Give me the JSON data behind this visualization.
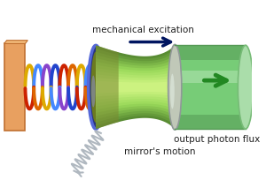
{
  "bg_color": "#ffffff",
  "wall_color": "#e8a060",
  "wall_edge_color": "#c07030",
  "spring_colors": [
    "#cc2200",
    "#dd6600",
    "#ddaa00",
    "#4488ff",
    "#8844cc",
    "#2244cc"
  ],
  "mirror_left_color_grad": [
    "#4455bb",
    "#6070d0",
    "#8090e0"
  ],
  "mirror_left_dark": "#2a3580",
  "mirror_left_mid": "#6a7ae0",
  "mirror_left_highlight": "#9090e8",
  "cavity_color1": "#c8e090",
  "cavity_color2": "#88bb60",
  "cavity_color3": "#557730",
  "cylinder_top": "#aade99",
  "cylinder_mid": "#77cc77",
  "cylinder_dark": "#559955",
  "mirror_right_color": "#c0c8b8",
  "mirror_right_dark": "#808c80",
  "mirror_right_edge": "#909898",
  "arrow_mech_color": "#001560",
  "arrow_out_color": "#228822",
  "wave_color": "#b0b8c0",
  "text_mech": "mechanical excitation",
  "text_mirror": "mirror's motion",
  "text_output": "output photon flux",
  "text_color": "#202020",
  "figsize": [
    3.0,
    2.04
  ],
  "dpi": 100
}
